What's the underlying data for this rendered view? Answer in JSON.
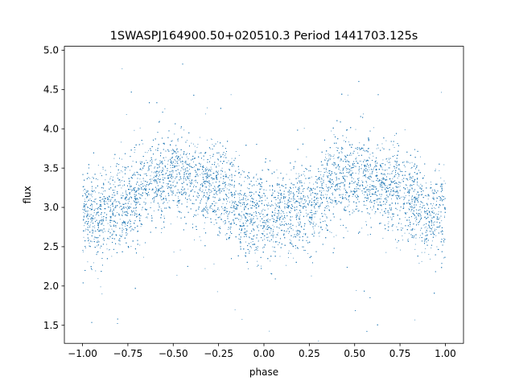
{
  "chart_data": {
    "type": "scatter",
    "title": "1SWASPJ164900.50+020510.3 Period 1441703.125s",
    "xlabel": "phase",
    "ylabel": "flux",
    "xlim": [
      -1.1,
      1.1
    ],
    "ylim": [
      1.27,
      5.05
    ],
    "grid": false,
    "legend": "none",
    "marker_color": "#1f77b4",
    "xticks": [
      {
        "value": -1.0,
        "label": "−1.00"
      },
      {
        "value": -0.75,
        "label": "−0.75"
      },
      {
        "value": -0.5,
        "label": "−0.50"
      },
      {
        "value": -0.25,
        "label": "−0.25"
      },
      {
        "value": 0.0,
        "label": "0.00"
      },
      {
        "value": 0.25,
        "label": "0.25"
      },
      {
        "value": 0.5,
        "label": "0.50"
      },
      {
        "value": 0.75,
        "label": "0.75"
      },
      {
        "value": 1.0,
        "label": "1.00"
      }
    ],
    "yticks": [
      {
        "value": 1.5,
        "label": "1.5"
      },
      {
        "value": 2.0,
        "label": "2.0"
      },
      {
        "value": 2.5,
        "label": "2.5"
      },
      {
        "value": 3.0,
        "label": "3.0"
      },
      {
        "value": 3.5,
        "label": "3.5"
      },
      {
        "value": 4.0,
        "label": "4.0"
      },
      {
        "value": 4.5,
        "label": "4.5"
      },
      {
        "value": 5.0,
        "label": "5.0"
      }
    ],
    "series": [
      {
        "curve": [
          [
            -1.0,
            2.95
          ],
          [
            -0.95,
            2.85
          ],
          [
            -0.9,
            2.9
          ],
          [
            -0.85,
            2.95
          ],
          [
            -0.8,
            3.0
          ],
          [
            -0.75,
            3.05
          ],
          [
            -0.7,
            3.1
          ],
          [
            -0.65,
            3.3
          ],
          [
            -0.6,
            3.38
          ],
          [
            -0.55,
            3.35
          ],
          [
            -0.5,
            3.4
          ],
          [
            -0.45,
            3.35
          ],
          [
            -0.4,
            3.3
          ],
          [
            -0.35,
            3.3
          ],
          [
            -0.3,
            3.25
          ],
          [
            -0.25,
            3.2
          ],
          [
            -0.2,
            3.15
          ],
          [
            -0.15,
            3.0
          ],
          [
            -0.1,
            2.9
          ],
          [
            -0.05,
            2.9
          ],
          [
            0.0,
            2.95
          ],
          [
            0.05,
            2.85
          ],
          [
            0.1,
            2.9
          ],
          [
            0.15,
            2.95
          ],
          [
            0.2,
            3.0
          ],
          [
            0.25,
            3.05
          ],
          [
            0.3,
            3.1
          ],
          [
            0.35,
            3.3
          ],
          [
            0.4,
            3.38
          ],
          [
            0.45,
            3.35
          ],
          [
            0.5,
            3.4
          ],
          [
            0.55,
            3.35
          ],
          [
            0.6,
            3.3
          ],
          [
            0.65,
            3.3
          ],
          [
            0.7,
            3.25
          ],
          [
            0.75,
            3.2
          ],
          [
            0.8,
            3.15
          ],
          [
            0.85,
            3.0
          ],
          [
            0.9,
            2.9
          ],
          [
            0.95,
            2.9
          ],
          [
            1.0,
            2.95
          ]
        ],
        "scatter_sd": 0.28,
        "n_points": 14000,
        "x_range": [
          -1.0,
          1.0
        ]
      }
    ]
  }
}
